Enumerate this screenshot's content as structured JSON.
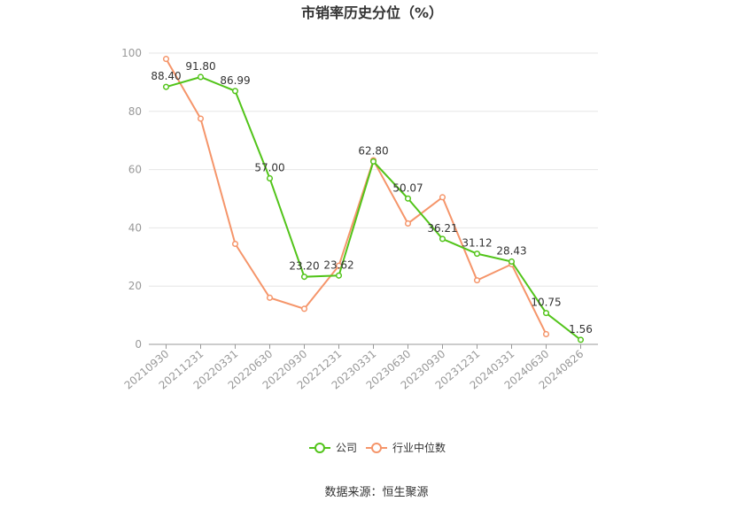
{
  "chart_data": {
    "type": "line",
    "title": "市销率历史分位（%）",
    "x": [
      "20210930",
      "20211231",
      "20220331",
      "20220630",
      "20220930",
      "20221231",
      "20230331",
      "20230630",
      "20230930",
      "20231231",
      "20240331",
      "20240630",
      "20240826"
    ],
    "ylim": [
      0,
      100
    ],
    "yticks": [
      0,
      20,
      40,
      60,
      80,
      100
    ],
    "grid": true,
    "legend_position": "bottom",
    "series": [
      {
        "name": "公司",
        "color": "#52c41a",
        "values": [
          88.4,
          91.8,
          86.99,
          57.0,
          23.2,
          23.62,
          62.8,
          50.07,
          36.21,
          31.12,
          28.43,
          10.75,
          1.56
        ],
        "labels": [
          "88.40",
          "91.80",
          "86.99",
          "57.00",
          "23.20",
          "23.62",
          "62.80",
          "50.07",
          "36.21",
          "31.12",
          "28.43",
          "10.75",
          "1.56"
        ]
      },
      {
        "name": "行业中位数",
        "color": "#f5956a",
        "values": [
          98,
          77.5,
          34.5,
          16,
          12.2,
          27,
          63.2,
          41.5,
          50.5,
          22,
          27.5,
          3.5,
          null
        ]
      }
    ],
    "source": "数据来源：恒生聚源"
  }
}
